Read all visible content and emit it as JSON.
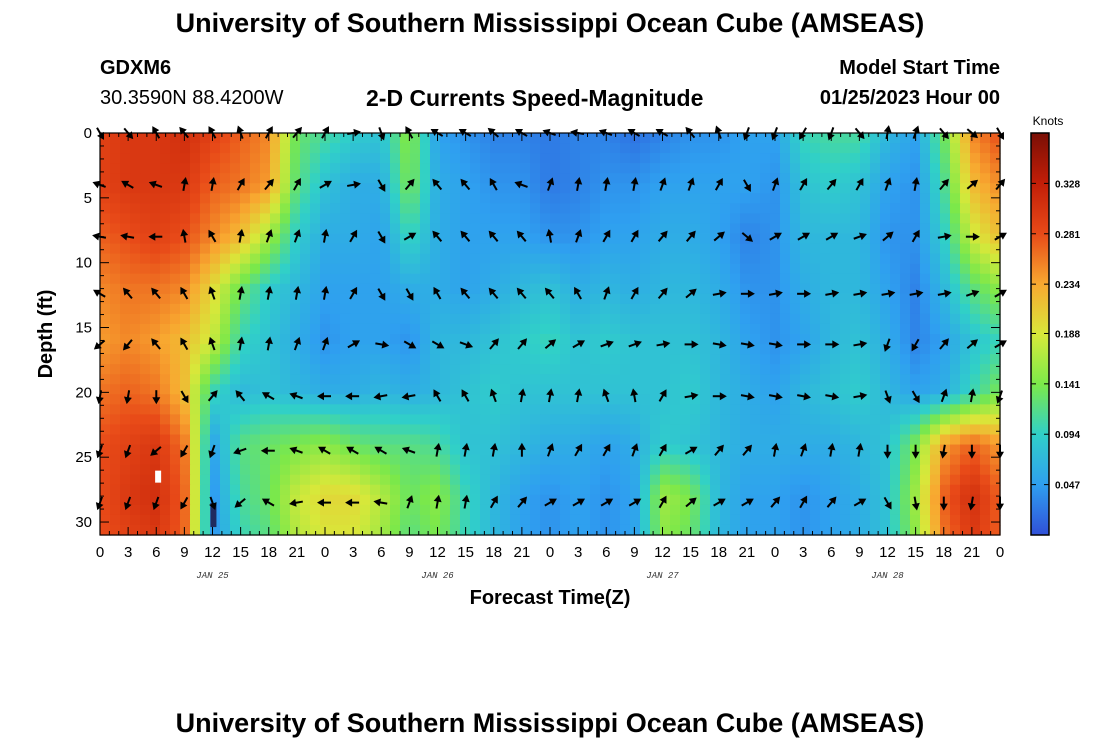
{
  "page": {
    "title_top": "University of Southern Mississippi Ocean Cube (AMSEAS)",
    "title_bottom": "University of Southern Mississippi Ocean Cube (AMSEAS)",
    "station": "GDXM6",
    "coords": "30.3590N  88.4200W",
    "subtitle": "2-D Currents Speed-Magnitude",
    "model_start_label": "Model Start Time",
    "model_start_time": "01/25/2023 Hour 00"
  },
  "chart_data": {
    "type": "heatmap",
    "title": "2-D Currents Speed-Magnitude",
    "xlabel": "Forecast Time(Z)",
    "ylabel": "Depth (ft)",
    "x_range_hours": [
      0,
      96
    ],
    "y_range_ft": [
      0,
      31
    ],
    "x_tick_labels": [
      "0",
      "3",
      "6",
      "9",
      "12",
      "15",
      "18",
      "21",
      "0",
      "3",
      "6",
      "9",
      "12",
      "15",
      "18",
      "21",
      "0",
      "3",
      "6",
      "9",
      "12",
      "15",
      "18",
      "21",
      "0",
      "3",
      "6",
      "9",
      "12",
      "15",
      "18",
      "21",
      "0"
    ],
    "y_ticks": [
      0,
      5,
      10,
      15,
      20,
      25,
      30
    ],
    "y_tick_labels": [
      "0",
      "5",
      "10",
      "15",
      "20",
      "25",
      "30"
    ],
    "day_labels": [
      {
        "text": "JAN 25",
        "hour": 12
      },
      {
        "text": "JAN 26",
        "hour": 36
      },
      {
        "text": "JAN 27",
        "hour": 60
      },
      {
        "text": "JAN 28",
        "hour": 84
      }
    ],
    "colorbar": {
      "unit": "Knots",
      "ticks": [
        0.047,
        0.094,
        0.141,
        0.188,
        0.234,
        0.281,
        0.328
      ],
      "tick_labels": [
        "0.047",
        "0.094",
        "0.141",
        "0.188",
        "0.234",
        "0.281",
        "0.328"
      ],
      "range": [
        0.0,
        0.375
      ],
      "colors": [
        "#3050d8",
        "#2f9ff0",
        "#30d0c8",
        "#7be84a",
        "#d8e83a",
        "#f8a830",
        "#e84a18",
        "#c21e08",
        "#7a0f05"
      ]
    },
    "time_hours": [
      0,
      3,
      6,
      9,
      12,
      15,
      18,
      21,
      24,
      27,
      30,
      33,
      36,
      39,
      42,
      45,
      48,
      51,
      54,
      57,
      60,
      63,
      66,
      69,
      72,
      75,
      78,
      81,
      84,
      87,
      90,
      93,
      96
    ],
    "depth_ft": [
      0,
      4,
      8,
      12,
      16,
      20,
      24,
      28,
      31
    ],
    "speed_knots": [
      [
        0.29,
        0.3,
        0.3,
        0.31,
        0.29,
        0.27,
        0.25,
        0.13,
        0.11,
        0.09,
        0.08,
        0.15,
        0.05,
        0.04,
        0.03,
        0.03,
        0.025,
        0.03,
        0.03,
        0.02,
        0.03,
        0.04,
        0.04,
        0.05,
        0.05,
        0.1,
        0.11,
        0.11,
        0.07,
        0.05,
        0.13,
        0.25,
        0.28
      ],
      [
        0.29,
        0.3,
        0.3,
        0.3,
        0.27,
        0.26,
        0.24,
        0.12,
        0.08,
        0.06,
        0.06,
        0.14,
        0.06,
        0.05,
        0.04,
        0.04,
        0.025,
        0.03,
        0.04,
        0.04,
        0.05,
        0.05,
        0.05,
        0.05,
        0.04,
        0.08,
        0.09,
        0.08,
        0.05,
        0.04,
        0.11,
        0.22,
        0.25
      ],
      [
        0.27,
        0.28,
        0.29,
        0.28,
        0.25,
        0.22,
        0.16,
        0.09,
        0.06,
        0.06,
        0.05,
        0.1,
        0.06,
        0.05,
        0.05,
        0.05,
        0.04,
        0.04,
        0.05,
        0.05,
        0.06,
        0.06,
        0.05,
        0.03,
        0.04,
        0.07,
        0.07,
        0.07,
        0.04,
        0.04,
        0.09,
        0.18,
        0.22
      ],
      [
        0.25,
        0.26,
        0.26,
        0.25,
        0.2,
        0.13,
        0.09,
        0.07,
        0.05,
        0.05,
        0.05,
        0.06,
        0.06,
        0.05,
        0.06,
        0.07,
        0.08,
        0.06,
        0.07,
        0.06,
        0.07,
        0.07,
        0.06,
        0.04,
        0.04,
        0.06,
        0.07,
        0.07,
        0.05,
        0.03,
        0.07,
        0.12,
        0.15
      ],
      [
        0.24,
        0.25,
        0.24,
        0.22,
        0.18,
        0.1,
        0.08,
        0.06,
        0.04,
        0.05,
        0.05,
        0.04,
        0.07,
        0.07,
        0.08,
        0.09,
        0.1,
        0.08,
        0.09,
        0.08,
        0.08,
        0.08,
        0.07,
        0.05,
        0.04,
        0.05,
        0.07,
        0.08,
        0.06,
        0.03,
        0.05,
        0.08,
        0.1
      ],
      [
        0.26,
        0.27,
        0.26,
        0.22,
        0.1,
        0.07,
        0.08,
        0.07,
        0.06,
        0.06,
        0.07,
        0.06,
        0.07,
        0.08,
        0.09,
        0.08,
        0.08,
        0.08,
        0.08,
        0.08,
        0.08,
        0.09,
        0.07,
        0.06,
        0.05,
        0.07,
        0.08,
        0.09,
        0.07,
        0.05,
        0.06,
        0.1,
        0.14
      ],
      [
        0.28,
        0.29,
        0.3,
        0.26,
        0.05,
        0.12,
        0.13,
        0.14,
        0.15,
        0.13,
        0.12,
        0.12,
        0.11,
        0.08,
        0.08,
        0.07,
        0.06,
        0.06,
        0.05,
        0.06,
        0.09,
        0.08,
        0.07,
        0.06,
        0.06,
        0.06,
        0.06,
        0.07,
        0.08,
        0.14,
        0.24,
        0.27,
        0.24
      ],
      [
        0.28,
        0.3,
        0.31,
        0.27,
        0.04,
        0.11,
        0.13,
        0.18,
        0.2,
        0.2,
        0.17,
        0.13,
        0.15,
        0.1,
        0.07,
        0.05,
        0.04,
        0.05,
        0.04,
        0.05,
        0.16,
        0.14,
        0.07,
        0.05,
        0.05,
        0.04,
        0.05,
        0.06,
        0.08,
        0.16,
        0.27,
        0.31,
        0.27
      ],
      [
        0.28,
        0.29,
        0.3,
        0.27,
        0.04,
        0.1,
        0.12,
        0.17,
        0.19,
        0.19,
        0.16,
        0.12,
        0.14,
        0.1,
        0.07,
        0.05,
        0.04,
        0.05,
        0.04,
        0.05,
        0.15,
        0.13,
        0.07,
        0.05,
        0.05,
        0.04,
        0.05,
        0.06,
        0.08,
        0.15,
        0.26,
        0.3,
        0.27
      ]
    ],
    "arrow_depths_ft": [
      0,
      4,
      8,
      12.4,
      16.3,
      20.3,
      24.5,
      28.5
    ],
    "arrow_direction_deg": [
      [
        150,
        140,
        330,
        320,
        330,
        340,
        30,
        40,
        30,
        80,
        160,
        330,
        300,
        300,
        310,
        300,
        290,
        280,
        290,
        300,
        300,
        320,
        340,
        200,
        200,
        210,
        200,
        140,
        10,
        20,
        140,
        130,
        150
      ],
      [
        290,
        300,
        290,
        10,
        10,
        30,
        40,
        30,
        60,
        80,
        150,
        40,
        320,
        320,
        330,
        290,
        20,
        10,
        10,
        10,
        20,
        20,
        30,
        150,
        20,
        30,
        40,
        30,
        20,
        10,
        40,
        50,
        40
      ],
      [
        280,
        280,
        270,
        350,
        330,
        10,
        20,
        20,
        10,
        30,
        150,
        60,
        320,
        320,
        320,
        320,
        350,
        20,
        30,
        30,
        40,
        40,
        50,
        130,
        60,
        60,
        60,
        70,
        50,
        30,
        80,
        90,
        60
      ],
      [
        300,
        320,
        320,
        330,
        340,
        10,
        10,
        10,
        10,
        30,
        150,
        150,
        330,
        320,
        320,
        320,
        320,
        330,
        20,
        30,
        40,
        50,
        80,
        90,
        80,
        90,
        80,
        80,
        80,
        80,
        80,
        70,
        60
      ],
      [
        230,
        220,
        320,
        330,
        340,
        10,
        10,
        20,
        20,
        60,
        100,
        120,
        120,
        110,
        40,
        40,
        50,
        60,
        70,
        70,
        80,
        90,
        100,
        100,
        100,
        90,
        90,
        80,
        200,
        210,
        40,
        50,
        60
      ],
      [
        190,
        190,
        180,
        150,
        40,
        320,
        300,
        290,
        270,
        270,
        260,
        260,
        330,
        330,
        340,
        10,
        10,
        10,
        340,
        350,
        30,
        80,
        90,
        100,
        100,
        100,
        100,
        80,
        160,
        150,
        20,
        10,
        200
      ],
      [
        200,
        200,
        230,
        210,
        200,
        250,
        270,
        290,
        300,
        300,
        300,
        290,
        10,
        10,
        10,
        0,
        20,
        30,
        30,
        20,
        30,
        60,
        40,
        40,
        10,
        20,
        10,
        10,
        180,
        180,
        190,
        180,
        180
      ],
      [
        200,
        200,
        200,
        210,
        160,
        230,
        300,
        260,
        270,
        270,
        280,
        20,
        10,
        10,
        30,
        40,
        60,
        60,
        60,
        60,
        30,
        50,
        60,
        60,
        40,
        30,
        40,
        60,
        150,
        170,
        180,
        190,
        180
      ]
    ],
    "data_gaps": [
      {
        "hour": 6.2,
        "depth_ft": 26.5
      },
      {
        "hour": 12.1,
        "depth_ft": 29.0
      }
    ]
  }
}
